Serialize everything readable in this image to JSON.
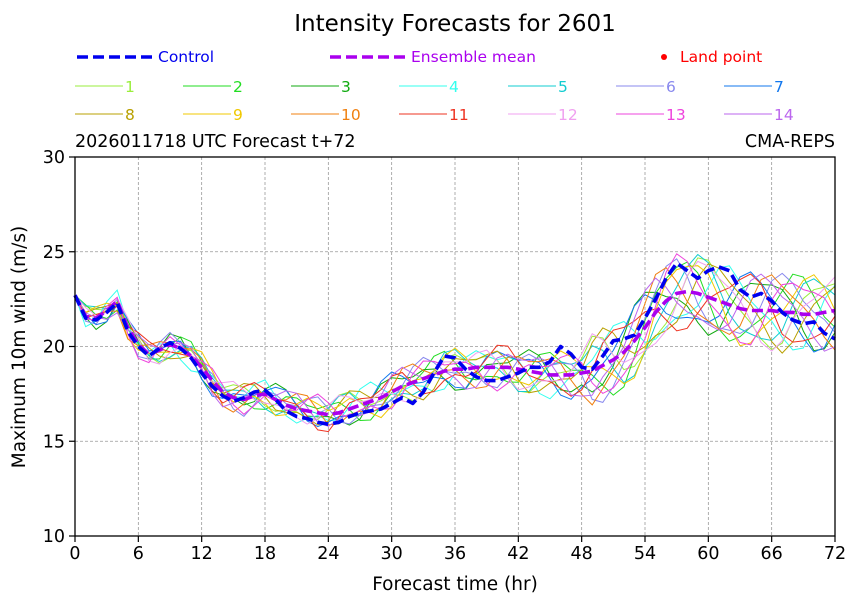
{
  "chart_data": {
    "type": "line",
    "title": "Intensity Forecasts for 2601",
    "subtitle_left": "2026011718 UTC Forecast t+72",
    "subtitle_right": "CMA-REPS",
    "xlabel": "Forecast time (hr)",
    "ylabel": "Maximum 10m wind (m/s)",
    "xlim": [
      0,
      72
    ],
    "ylim": [
      10,
      30
    ],
    "xticks": [
      0,
      6,
      12,
      18,
      24,
      30,
      36,
      42,
      48,
      54,
      60,
      66,
      72
    ],
    "yticks": [
      10,
      15,
      20,
      25,
      30
    ],
    "grid": true,
    "legend": {
      "control": {
        "label": "Control",
        "color": "#0000ee"
      },
      "ensemble": {
        "label": "Ensemble mean",
        "color": "#aa00ee"
      },
      "land": {
        "label": "Land point",
        "color": "#ff0000"
      }
    },
    "members": [
      {
        "name": "1",
        "color": "#9aee3c"
      },
      {
        "name": "2",
        "color": "#22dd22"
      },
      {
        "name": "3",
        "color": "#11aa11"
      },
      {
        "name": "4",
        "color": "#33ffee"
      },
      {
        "name": "5",
        "color": "#11ccd0"
      },
      {
        "name": "6",
        "color": "#8888ee"
      },
      {
        "name": "7",
        "color": "#1177ee"
      },
      {
        "name": "8",
        "color": "#b8a000"
      },
      {
        "name": "9",
        "color": "#f0c800"
      },
      {
        "name": "10",
        "color": "#f08010"
      },
      {
        "name": "11",
        "color": "#ee3322"
      },
      {
        "name": "12",
        "color": "#f0a0f0"
      },
      {
        "name": "13",
        "color": "#ee44dd"
      },
      {
        "name": "14",
        "color": "#bb66ee"
      }
    ],
    "x": [
      0,
      1,
      2,
      3,
      4,
      5,
      6,
      7,
      8,
      9,
      10,
      11,
      12,
      13,
      14,
      15,
      16,
      17,
      18,
      19,
      20,
      21,
      22,
      23,
      24,
      25,
      26,
      27,
      28,
      29,
      30,
      31,
      32,
      33,
      34,
      35,
      36,
      37,
      38,
      39,
      40,
      41,
      42,
      43,
      44,
      45,
      46,
      47,
      48,
      49,
      50,
      51,
      52,
      53,
      54,
      55,
      56,
      57,
      58,
      59,
      60,
      61,
      62,
      63,
      64,
      65,
      66,
      67,
      68,
      69,
      70,
      71,
      72
    ],
    "series": [
      {
        "name": "Control",
        "values": [
          22.7,
          21.5,
          21.4,
          21.8,
          22.3,
          20.8,
          20.0,
          19.5,
          19.9,
          20.2,
          19.9,
          19.4,
          18.6,
          17.9,
          17.4,
          17.1,
          17.3,
          17.6,
          17.7,
          17.2,
          16.6,
          16.3,
          16.2,
          16.0,
          15.9,
          16.0,
          16.3,
          16.5,
          16.6,
          16.7,
          17.0,
          17.3,
          17.0,
          17.6,
          18.6,
          19.5,
          19.4,
          18.8,
          18.4,
          18.2,
          18.2,
          18.4,
          18.6,
          18.9,
          18.9,
          19.2,
          20.0,
          19.6,
          18.9,
          18.8,
          19.5,
          20.3,
          20.4,
          20.6,
          21.5,
          22.5,
          23.6,
          24.4,
          24.0,
          23.6,
          24.0,
          24.2,
          24.0,
          23.0,
          22.6,
          22.8,
          22.4,
          21.8,
          21.4,
          21.2,
          21.3,
          20.7,
          20.4
        ]
      },
      {
        "name": "Ensemble mean",
        "values": [
          22.7,
          21.6,
          21.5,
          21.9,
          22.4,
          21.0,
          20.1,
          19.6,
          19.8,
          20.1,
          19.9,
          19.5,
          18.9,
          18.2,
          17.6,
          17.3,
          17.2,
          17.4,
          17.5,
          17.2,
          16.9,
          16.7,
          16.6,
          16.5,
          16.4,
          16.5,
          16.7,
          16.9,
          17.1,
          17.3,
          17.6,
          17.9,
          18.1,
          18.3,
          18.5,
          18.7,
          18.8,
          18.8,
          18.9,
          18.9,
          18.9,
          18.9,
          18.8,
          18.7,
          18.6,
          18.5,
          18.5,
          18.5,
          18.6,
          18.7,
          19.0,
          19.3,
          19.7,
          20.3,
          21.0,
          21.8,
          22.4,
          22.8,
          22.9,
          22.8,
          22.6,
          22.4,
          22.2,
          22.0,
          21.9,
          21.9,
          21.9,
          21.8,
          21.8,
          21.7,
          21.7,
          21.8,
          21.9
        ]
      }
    ]
  }
}
